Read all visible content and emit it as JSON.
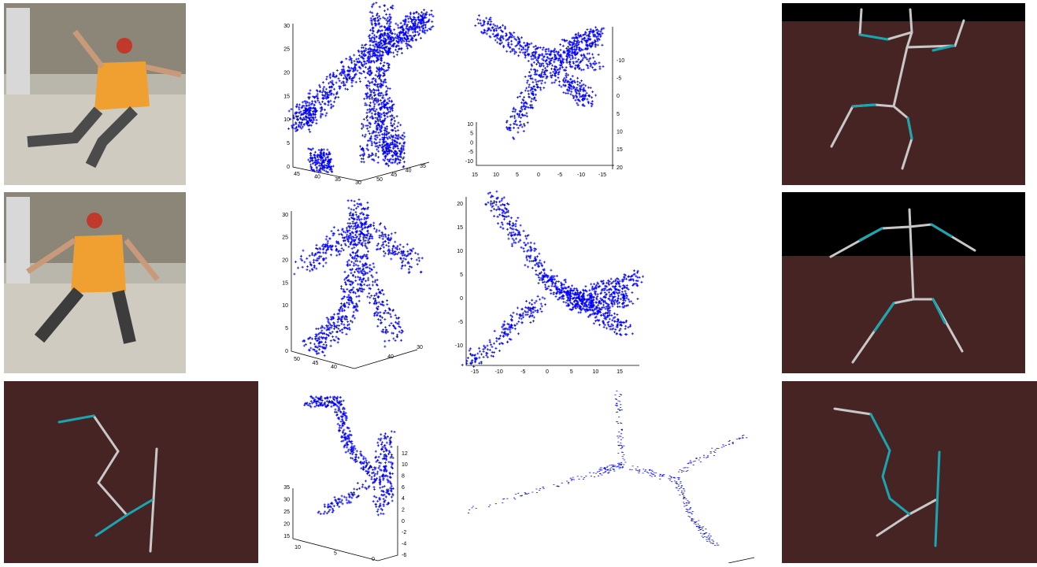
{
  "rows": [
    {
      "plot3d": {
        "z_ticks": [
          "0",
          "5",
          "10",
          "15",
          "20",
          "25",
          "30"
        ],
        "x_ticks": [
          "45",
          "40",
          "35",
          "30"
        ],
        "y_ticks": [
          "50",
          "45",
          "40",
          "35"
        ]
      },
      "plot2d": {
        "right_ticks": [
          "-10",
          "-5",
          "0",
          "5",
          "10",
          "15",
          "20"
        ],
        "inset_ticks": [
          "10",
          "5",
          "0",
          "-5",
          "-10"
        ],
        "bottom_ticks": [
          "15",
          "10",
          "5",
          "0",
          "-5",
          "-10",
          "-15"
        ]
      }
    },
    {
      "plot3d": {
        "z_ticks": [
          "0",
          "5",
          "10",
          "15",
          "20",
          "25",
          "30"
        ],
        "x_ticks": [
          "50",
          "45",
          "40"
        ],
        "y_ticks": [
          "40",
          "30"
        ]
      },
      "plot2d": {
        "left_ticks": [
          "20",
          "15",
          "10",
          "5",
          "0",
          "-5",
          "-10"
        ],
        "bottom_ticks": [
          "-15",
          "-10",
          "-5",
          "0",
          "5",
          "10",
          "15"
        ]
      }
    },
    {
      "plot3d": {
        "z_ticks": [
          "15",
          "20",
          "25",
          "30",
          "35"
        ],
        "x_ticks": [
          "10",
          "5",
          "0"
        ],
        "y_ticks": [
          "12",
          "10",
          "8",
          "6",
          "4",
          "2",
          "0",
          "-2",
          "-4",
          "-6"
        ]
      }
    }
  ]
}
